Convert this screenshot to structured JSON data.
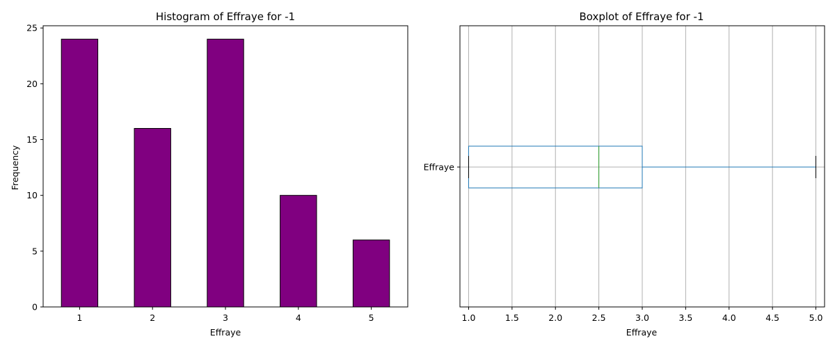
{
  "chart_data": [
    {
      "type": "bar",
      "title": "Histogram of Effraye for -1",
      "xlabel": "Effraye",
      "ylabel": "Frequency",
      "categories": [
        "1",
        "2",
        "3",
        "4",
        "5"
      ],
      "values": [
        24,
        16,
        24,
        10,
        6
      ],
      "yticks": [
        0,
        5,
        10,
        15,
        20,
        25
      ],
      "ylim": [
        0,
        25.2
      ],
      "bar_color": "#800080",
      "edge_color": "#000000",
      "grid": false
    },
    {
      "type": "boxplot",
      "orientation": "horizontal",
      "title": "Boxplot of Effraye for -1",
      "xlabel": "Effraye",
      "ylabel": "",
      "category": "Effraye",
      "whisker_low": 1.0,
      "q1": 1.0,
      "median": 2.5,
      "q3": 3.0,
      "whisker_high": 5.0,
      "xticks": [
        "1.0",
        "1.5",
        "2.0",
        "2.5",
        "3.0",
        "3.5",
        "4.0",
        "4.5",
        "5.0"
      ],
      "xlim": [
        0.9,
        5.1
      ],
      "box_color": "#1f77b4",
      "median_color": "#2ca02c",
      "grid": true
    }
  ]
}
